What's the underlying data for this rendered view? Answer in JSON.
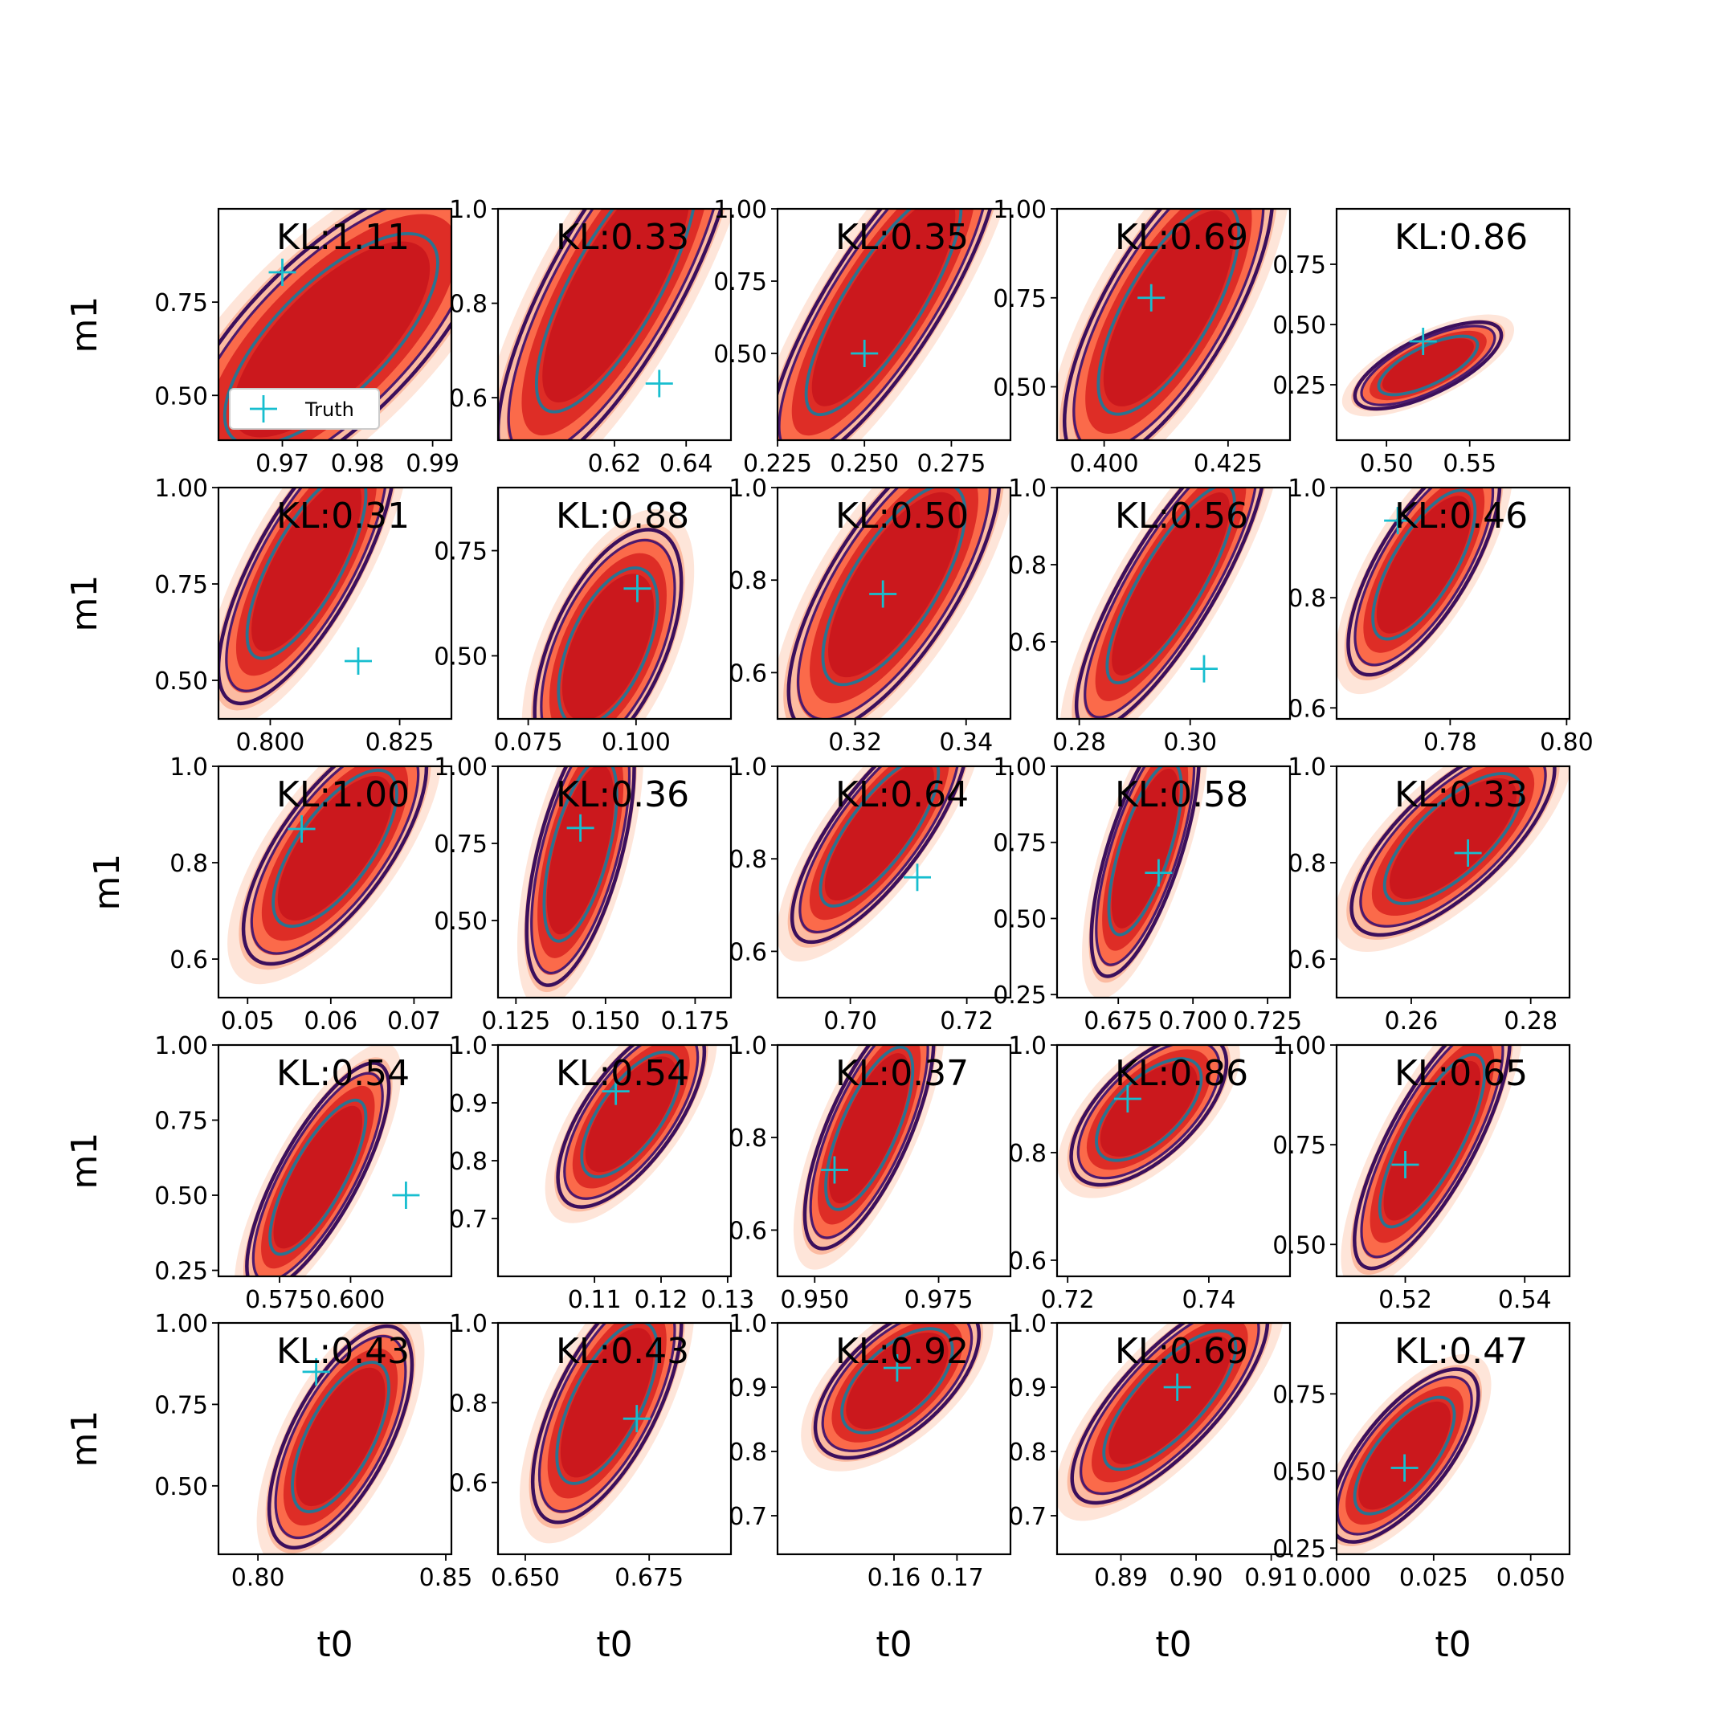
{
  "figure": {
    "xlabel": "t0",
    "ylabel": "m1",
    "legend_label": "Truth"
  },
  "colors": {
    "fill_levels": [
      "#fee5d9",
      "#fcbba1",
      "#fb6a4a",
      "#de2d26",
      "#cb181d"
    ],
    "contour_outer": "#3b0f5c",
    "contour_mid": "#4b1a6e",
    "contour_inner": "#2a7391",
    "truth_marker": "#17becf",
    "axes": "#000000"
  },
  "chart_data": [
    {
      "row": 0,
      "col": 0,
      "type": "contour",
      "kl": "KL:1.11",
      "xlim": [
        0.9615,
        0.9925
      ],
      "ylim": [
        0.38,
        1.0
      ],
      "xticks": [
        0.97,
        0.98,
        0.99
      ],
      "xticklabels": [
        "0.97",
        "0.98",
        "0.99"
      ],
      "yticks": [
        0.5,
        0.75
      ],
      "yticklabels": [
        "0.50",
        "0.75"
      ],
      "truth": [
        0.97,
        0.83
      ],
      "center": [
        0.9765,
        0.65
      ],
      "spread": [
        0.0105,
        0.21
      ],
      "rho": -0.72,
      "legend": true
    },
    {
      "row": 0,
      "col": 1,
      "type": "contour",
      "kl": "KL:0.33",
      "xlim": [
        0.5875,
        0.6525
      ],
      "ylim": [
        0.51,
        1.0
      ],
      "xticks": [
        0.62,
        0.64
      ],
      "xticklabels": [
        "0.62",
        "0.64"
      ],
      "yticks": [
        0.6,
        0.8,
        1.0
      ],
      "yticklabels": [
        "0.6",
        "0.8",
        "1.0"
      ],
      "truth": [
        0.6325,
        0.63
      ],
      "center": [
        0.6205,
        0.84
      ],
      "spread": [
        0.0165,
        0.2
      ],
      "rho": -0.78
    },
    {
      "row": 0,
      "col": 2,
      "type": "contour",
      "kl": "KL:0.35",
      "xlim": [
        0.225,
        0.292
      ],
      "ylim": [
        0.2,
        1.0
      ],
      "xticks": [
        0.225,
        0.25,
        0.275
      ],
      "xticklabels": [
        "0.225",
        "0.250",
        "0.275"
      ],
      "yticks": [
        0.5,
        0.75,
        1.0
      ],
      "yticklabels": [
        "0.50",
        "0.75",
        "1.00"
      ],
      "truth": [
        0.25,
        0.5
      ],
      "center": [
        0.2555,
        0.68
      ],
      "spread": [
        0.0165,
        0.29
      ],
      "rho": -0.82
    },
    {
      "row": 0,
      "col": 3,
      "type": "contour",
      "kl": "KL:0.69",
      "xlim": [
        0.3905,
        0.4375
      ],
      "ylim": [
        0.35,
        1.0
      ],
      "xticks": [
        0.4,
        0.425
      ],
      "xticklabels": [
        "0.400",
        "0.425"
      ],
      "yticks": [
        0.5,
        0.75,
        1.0
      ],
      "yticklabels": [
        "0.50",
        "0.75",
        "1.00"
      ],
      "truth": [
        0.4095,
        0.75
      ],
      "center": [
        0.413,
        0.72
      ],
      "spread": [
        0.0105,
        0.22
      ],
      "rho": -0.72
    },
    {
      "row": 0,
      "col": 4,
      "type": "contour",
      "kl": "KL:0.86",
      "xlim": [
        0.47,
        0.61
      ],
      "ylim": [
        0.02,
        0.98
      ],
      "xticks": [
        0.5,
        0.55
      ],
      "xticklabels": [
        "0.50",
        "0.55"
      ],
      "yticks": [
        0.25,
        0.5,
        0.75
      ],
      "yticklabels": [
        "0.25",
        "0.50",
        "0.75"
      ],
      "truth": [
        0.522,
        0.43
      ],
      "center": [
        0.525,
        0.33
      ],
      "spread": [
        0.022,
        0.09
      ],
      "rho": -0.7
    },
    {
      "row": 1,
      "col": 0,
      "type": "contour",
      "kl": "KL:0.31",
      "xlim": [
        0.79,
        0.835
      ],
      "ylim": [
        0.4,
        1.0
      ],
      "xticks": [
        0.8,
        0.825
      ],
      "xticklabels": [
        "0.800",
        "0.825"
      ],
      "yticks": [
        0.5,
        0.75,
        1.0
      ],
      "yticklabels": [
        "0.50",
        "0.75",
        "1.00"
      ],
      "truth": [
        0.817,
        0.55
      ],
      "center": [
        0.807,
        0.8
      ],
      "spread": [
        0.0085,
        0.18
      ],
      "rho": -0.75
    },
    {
      "row": 1,
      "col": 1,
      "type": "contour",
      "kl": "KL:0.88",
      "xlim": [
        0.068,
        0.122
      ],
      "ylim": [
        0.35,
        0.9
      ],
      "xticks": [
        0.075,
        0.1
      ],
      "xticklabels": [
        "0.075",
        "0.100"
      ],
      "yticks": [
        0.5,
        0.75
      ],
      "yticklabels": [
        "0.50",
        "0.75"
      ],
      "truth": [
        0.1003,
        0.66
      ],
      "center": [
        0.0935,
        0.52
      ],
      "spread": [
        0.0085,
        0.14
      ],
      "rho": -0.55
    },
    {
      "row": 1,
      "col": 2,
      "type": "contour",
      "kl": "KL:0.50",
      "xlim": [
        0.306,
        0.348
      ],
      "ylim": [
        0.5,
        1.0
      ],
      "xticks": [
        0.32,
        0.34
      ],
      "xticklabels": [
        "0.32",
        "0.34"
      ],
      "yticks": [
        0.6,
        0.8,
        1.0
      ],
      "yticklabels": [
        "0.6",
        "0.8",
        "1.0"
      ],
      "truth": [
        0.325,
        0.77
      ],
      "center": [
        0.327,
        0.79
      ],
      "spread": [
        0.0095,
        0.16
      ],
      "rho": -0.72
    },
    {
      "row": 1,
      "col": 3,
      "type": "contour",
      "kl": "KL:0.56",
      "xlim": [
        0.276,
        0.318
      ],
      "ylim": [
        0.4,
        1.0
      ],
      "xticks": [
        0.28,
        0.3
      ],
      "xticklabels": [
        "0.28",
        "0.30"
      ],
      "yticks": [
        0.6,
        0.8,
        1.0
      ],
      "yticklabels": [
        "0.6",
        "0.8",
        "1.0"
      ],
      "truth": [
        0.3025,
        0.53
      ],
      "center": [
        0.2965,
        0.75
      ],
      "spread": [
        0.0085,
        0.19
      ],
      "rho": -0.83
    },
    {
      "row": 1,
      "col": 4,
      "type": "contour",
      "kl": "KL:0.46",
      "xlim": [
        0.7605,
        0.8005
      ],
      "ylim": [
        0.58,
        1.0
      ],
      "xticks": [
        0.78,
        0.8
      ],
      "xticklabels": [
        "0.78",
        "0.80"
      ],
      "yticks": [
        0.6,
        0.8,
        1.0
      ],
      "yticklabels": [
        "0.6",
        "0.8",
        "1.0"
      ],
      "truth": [
        0.771,
        0.94
      ],
      "center": [
        0.7755,
        0.86
      ],
      "spread": [
        0.0065,
        0.1
      ],
      "rho": -0.72
    },
    {
      "row": 2,
      "col": 0,
      "type": "contour",
      "kl": "KL:1.00",
      "xlim": [
        0.0465,
        0.0745
      ],
      "ylim": [
        0.52,
        1.0
      ],
      "xticks": [
        0.05,
        0.06,
        0.07
      ],
      "xticklabels": [
        "0.05",
        "0.06",
        "0.07"
      ],
      "yticks": [
        0.6,
        0.8,
        1.0
      ],
      "yticklabels": [
        "0.6",
        "0.8",
        "1.0"
      ],
      "truth": [
        0.0565,
        0.87
      ],
      "center": [
        0.0605,
        0.83
      ],
      "spread": [
        0.0055,
        0.12
      ],
      "rho": -0.7
    },
    {
      "row": 2,
      "col": 1,
      "type": "contour",
      "kl": "KL:0.36",
      "xlim": [
        0.12,
        0.185
      ],
      "ylim": [
        0.25,
        1.0
      ],
      "xticks": [
        0.125,
        0.15,
        0.175
      ],
      "xticklabels": [
        "0.125",
        "0.150",
        "0.175"
      ],
      "yticks": [
        0.5,
        0.75,
        1.0
      ],
      "yticklabels": [
        "0.50",
        "0.75",
        "1.00"
      ],
      "truth": [
        0.143,
        0.8
      ],
      "center": [
        0.143,
        0.73
      ],
      "spread": [
        0.0075,
        0.22
      ],
      "rho": -0.6
    },
    {
      "row": 2,
      "col": 2,
      "type": "contour",
      "kl": "KL:0.64",
      "xlim": [
        0.6875,
        0.7275
      ],
      "ylim": [
        0.5,
        1.0
      ],
      "xticks": [
        0.7,
        0.72
      ],
      "xticklabels": [
        "0.70",
        "0.72"
      ],
      "yticks": [
        0.6,
        0.8,
        1.0
      ],
      "yticklabels": [
        "0.6",
        "0.8",
        "1.0"
      ],
      "truth": [
        0.7115,
        0.76
      ],
      "center": [
        0.705,
        0.86
      ],
      "spread": [
        0.0075,
        0.12
      ],
      "rho": -0.78
    },
    {
      "row": 2,
      "col": 3,
      "type": "contour",
      "kl": "KL:0.58",
      "xlim": [
        0.6545,
        0.7325
      ],
      "ylim": [
        0.24,
        1.0
      ],
      "xticks": [
        0.675,
        0.7,
        0.725
      ],
      "xticklabels": [
        "0.675",
        "0.700",
        "0.725"
      ],
      "yticks": [
        0.25,
        0.5,
        0.75,
        1.0
      ],
      "yticklabels": [
        "0.25",
        "0.50",
        "0.75",
        "1.00"
      ],
      "truth": [
        0.6885,
        0.65
      ],
      "center": [
        0.684,
        0.73
      ],
      "spread": [
        0.009,
        0.21
      ],
      "rho": -0.7
    },
    {
      "row": 2,
      "col": 4,
      "type": "contour",
      "kl": "KL:0.33",
      "xlim": [
        0.2475,
        0.2865
      ],
      "ylim": [
        0.52,
        1.0
      ],
      "xticks": [
        0.26,
        0.28
      ],
      "xticklabels": [
        "0.26",
        "0.28"
      ],
      "yticks": [
        0.6,
        0.8,
        1.0
      ],
      "yticklabels": [
        "0.6",
        "0.8",
        "1.0"
      ],
      "truth": [
        0.2695,
        0.82
      ],
      "center": [
        0.267,
        0.85
      ],
      "spread": [
        0.0085,
        0.1
      ],
      "rho": -0.72
    },
    {
      "row": 3,
      "col": 0,
      "type": "contour",
      "kl": "KL:0.54",
      "xlim": [
        0.5535,
        0.6355
      ],
      "ylim": [
        0.23,
        1.0
      ],
      "xticks": [
        0.575,
        0.6
      ],
      "xticklabels": [
        "0.575",
        "0.600"
      ],
      "yticks": [
        0.25,
        0.5,
        0.75,
        1.0
      ],
      "yticklabels": [
        "0.25",
        "0.50",
        "0.75",
        "1.00"
      ],
      "truth": [
        0.6195,
        0.5
      ],
      "center": [
        0.5885,
        0.56
      ],
      "spread": [
        0.0125,
        0.19
      ],
      "rho": -0.78
    },
    {
      "row": 3,
      "col": 1,
      "type": "contour",
      "kl": "KL:0.54",
      "xlim": [
        0.0955,
        0.1305
      ],
      "ylim": [
        0.6,
        1.0
      ],
      "xticks": [
        0.11,
        0.12,
        0.13
      ],
      "xticklabels": [
        "0.11",
        "0.12",
        "0.13"
      ],
      "yticks": [
        0.7,
        0.8,
        0.9,
        1.0
      ],
      "yticklabels": [
        "0.7",
        "0.8",
        "0.9",
        "1.0"
      ],
      "truth": [
        0.1132,
        0.92
      ],
      "center": [
        0.1155,
        0.88
      ],
      "spread": [
        0.0055,
        0.08
      ],
      "rho": -0.68
    },
    {
      "row": 3,
      "col": 2,
      "type": "contour",
      "kl": "KL:0.37",
      "xlim": [
        0.9425,
        0.9895
      ],
      "ylim": [
        0.5,
        1.0
      ],
      "xticks": [
        0.95,
        0.975
      ],
      "xticklabels": [
        "0.950",
        "0.975"
      ],
      "yticks": [
        0.6,
        0.8,
        1.0
      ],
      "yticklabels": [
        "0.6",
        "0.8",
        "1.0"
      ],
      "truth": [
        0.954,
        0.73
      ],
      "center": [
        0.961,
        0.82
      ],
      "spread": [
        0.0065,
        0.13
      ],
      "rho": -0.72
    },
    {
      "row": 3,
      "col": 3,
      "type": "contour",
      "kl": "KL:0.86",
      "xlim": [
        0.7185,
        0.7515
      ],
      "ylim": [
        0.57,
        1.0
      ],
      "xticks": [
        0.72,
        0.74
      ],
      "xticklabels": [
        "0.72",
        "0.74"
      ],
      "yticks": [
        0.6,
        0.8,
        1.0
      ],
      "yticklabels": [
        "0.6",
        "0.8",
        "1.0"
      ],
      "truth": [
        0.7285,
        0.9
      ],
      "center": [
        0.7315,
        0.88
      ],
      "spread": [
        0.0055,
        0.07
      ],
      "rho": -0.62
    },
    {
      "row": 3,
      "col": 4,
      "type": "contour",
      "kl": "KL:0.65",
      "xlim": [
        0.5085,
        0.5475
      ],
      "ylim": [
        0.42,
        1.0
      ],
      "xticks": [
        0.52,
        0.54
      ],
      "xticklabels": [
        "0.52",
        "0.54"
      ],
      "yticks": [
        0.5,
        0.75,
        1.0
      ],
      "yticklabels": [
        "0.50",
        "0.75",
        "1.00"
      ],
      "truth": [
        0.52,
        0.7
      ],
      "center": [
        0.5245,
        0.76
      ],
      "spread": [
        0.0065,
        0.16
      ],
      "rho": -0.78
    },
    {
      "row": 4,
      "col": 0,
      "type": "contour",
      "kl": "KL:0.43",
      "xlim": [
        0.7895,
        0.8515
      ],
      "ylim": [
        0.29,
        1.0
      ],
      "xticks": [
        0.8,
        0.85
      ],
      "xticklabels": [
        "0.80",
        "0.85"
      ],
      "yticks": [
        0.5,
        0.75,
        1.0
      ],
      "yticklabels": [
        "0.50",
        "0.75",
        "1.00"
      ],
      "truth": [
        0.8155,
        0.85
      ],
      "center": [
        0.822,
        0.65
      ],
      "spread": [
        0.0095,
        0.17
      ],
      "rho": -0.65
    },
    {
      "row": 4,
      "col": 1,
      "type": "contour",
      "kl": "KL:0.43",
      "xlim": [
        0.6445,
        0.6915
      ],
      "ylim": [
        0.42,
        1.0
      ],
      "xticks": [
        0.65,
        0.675
      ],
      "xticklabels": [
        "0.650",
        "0.675"
      ],
      "yticks": [
        0.6,
        0.8,
        1.0
      ],
      "yticklabels": [
        "0.6",
        "0.8",
        "1.0"
      ],
      "truth": [
        0.6725,
        0.76
      ],
      "center": [
        0.6665,
        0.8
      ],
      "spread": [
        0.0075,
        0.15
      ],
      "rho": -0.66
    },
    {
      "row": 4,
      "col": 2,
      "type": "contour",
      "kl": "KL:0.92",
      "xlim": [
        0.1415,
        0.1785
      ],
      "ylim": [
        0.64,
        1.0
      ],
      "xticks": [
        0.16,
        0.17
      ],
      "xticklabels": [
        "0.16",
        "0.17"
      ],
      "yticks": [
        0.7,
        0.8,
        0.9,
        1.0
      ],
      "yticklabels": [
        "0.7",
        "0.8",
        "0.9",
        "1.0"
      ],
      "truth": [
        0.1605,
        0.93
      ],
      "center": [
        0.1605,
        0.91
      ],
      "spread": [
        0.0065,
        0.06
      ],
      "rho": -0.6
    },
    {
      "row": 4,
      "col": 3,
      "type": "contour",
      "kl": "KL:0.69",
      "xlim": [
        0.8815,
        0.9125
      ],
      "ylim": [
        0.64,
        1.0
      ],
      "xticks": [
        0.89,
        0.9,
        0.91
      ],
      "xticklabels": [
        "0.89",
        "0.90",
        "0.91"
      ],
      "yticks": [
        0.7,
        0.8,
        0.9,
        1.0
      ],
      "yticklabels": [
        "0.7",
        "0.8",
        "0.9",
        "1.0"
      ],
      "truth": [
        0.8975,
        0.9
      ],
      "center": [
        0.8965,
        0.88
      ],
      "spread": [
        0.0065,
        0.08
      ],
      "rho": -0.76
    },
    {
      "row": 4,
      "col": 4,
      "type": "contour",
      "kl": "KL:0.47",
      "xlim": [
        0.0,
        0.06
      ],
      "ylim": [
        0.23,
        0.98
      ],
      "xticks": [
        0.0,
        0.025,
        0.05
      ],
      "xticklabels": [
        "0.000",
        "0.025",
        "0.050"
      ],
      "yticks": [
        0.25,
        0.5,
        0.75
      ],
      "yticklabels": [
        "0.25",
        "0.50",
        "0.75"
      ],
      "truth": [
        0.0175,
        0.51
      ],
      "center": [
        0.0175,
        0.55
      ],
      "spread": [
        0.0095,
        0.14
      ],
      "rho": -0.7
    }
  ]
}
